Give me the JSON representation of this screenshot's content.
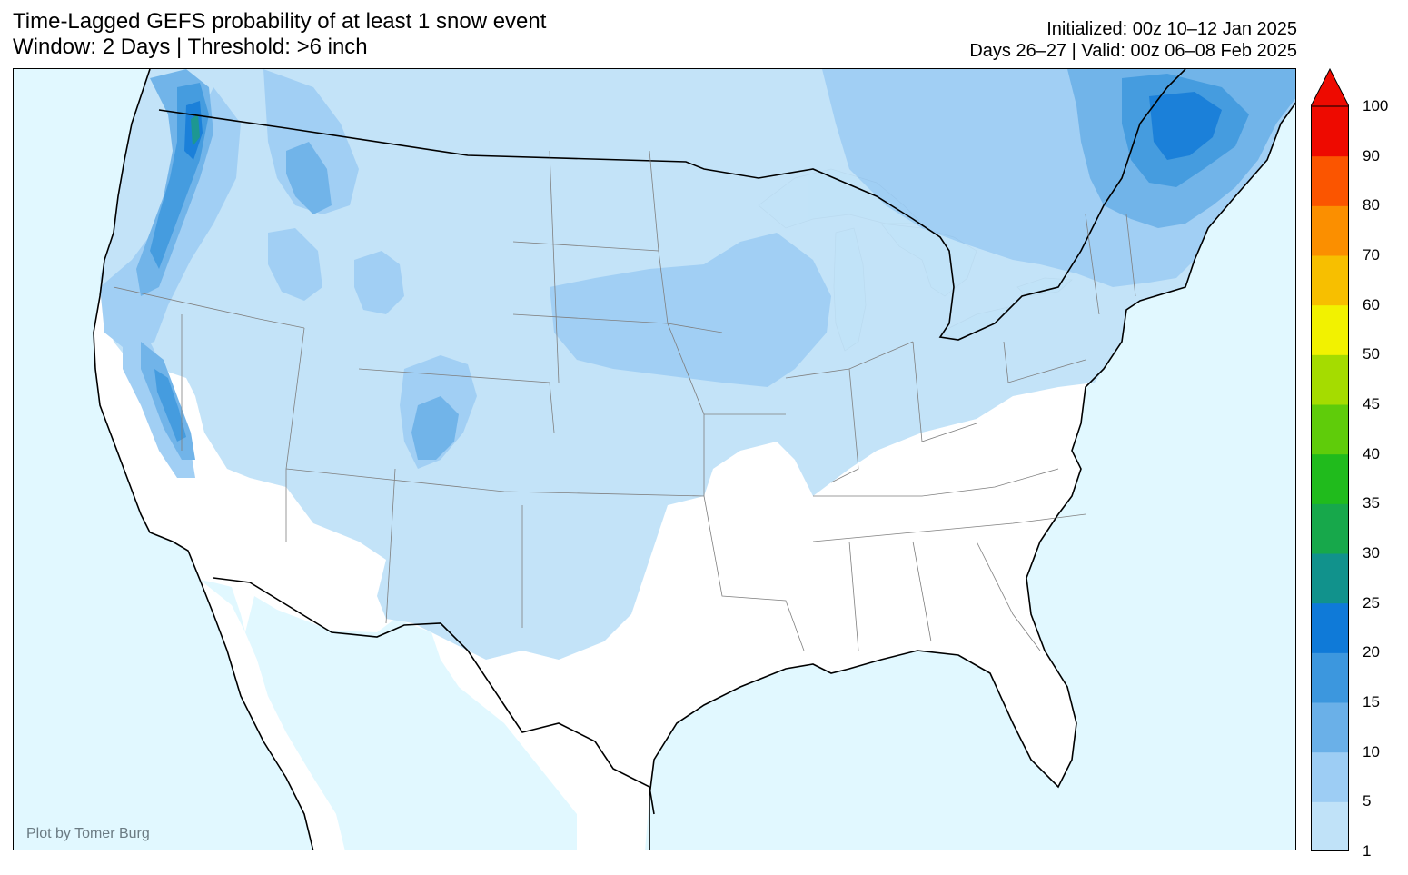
{
  "title": {
    "line1": "Time-Lagged GEFS probability of at least 1 snow event",
    "line2": "Window: 2 Days | Threshold: >6 inch"
  },
  "meta": {
    "initialized": "Initialized: 00z 10–12 Jan 2025",
    "valid": "Days 26–27 | Valid: 00z 06–08 Feb 2025"
  },
  "credit": "Plot by Tomer Burg",
  "colors": {
    "ocean": "#e1f8ff",
    "land": "#ffffff",
    "lakes": "#e1f8ff",
    "borders": "#000000",
    "state_lines": "#7f7f7f"
  },
  "colorbar": {
    "levels": [
      "1",
      "5",
      "10",
      "15",
      "20",
      "25",
      "30",
      "35",
      "40",
      "45",
      "50",
      "60",
      "70",
      "80",
      "90",
      "100"
    ],
    "colors": [
      "#c0e2f8",
      "#9dcdf4",
      "#6ab0e8",
      "#3c97de",
      "#0f7ad8",
      "#11928c",
      "#17a84b",
      "#20bb1c",
      "#5fcc0a",
      "#a5dc00",
      "#f2f200",
      "#f7bf00",
      "#fb8f00",
      "#fb5500",
      "#ee0a00"
    ],
    "extend": "max"
  }
}
